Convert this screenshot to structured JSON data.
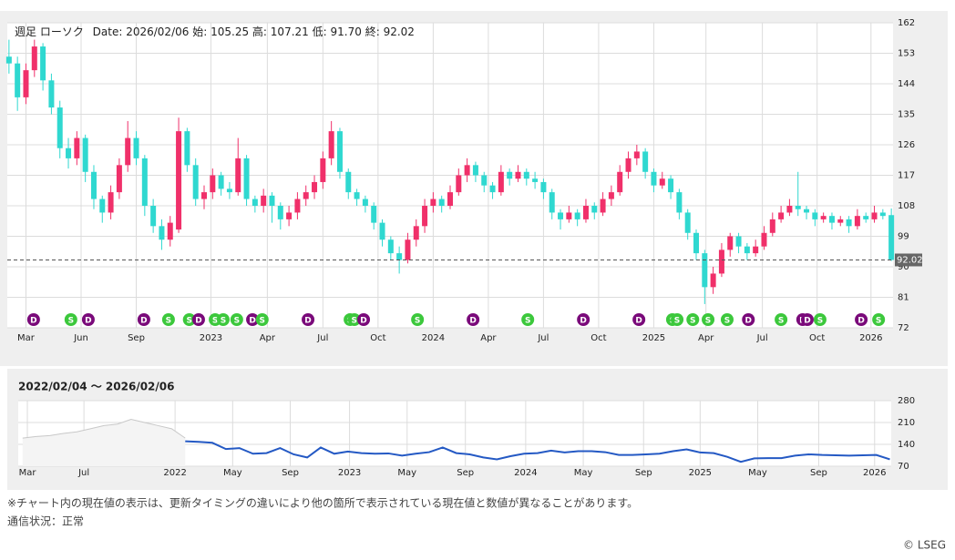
{
  "chart_data": [
    {
      "type": "candlestick",
      "header": {
        "kind": "週足 ローソク",
        "date_label": "Date:",
        "date": "2026/02/06",
        "open_label": "始:",
        "open": "105.25",
        "high_label": "高:",
        "high": "107.21",
        "low_label": "低:",
        "low": "91.70",
        "close_label": "終:",
        "close": "92.02"
      },
      "up_color": "#f0306a",
      "down_color": "#2fd8d0",
      "xlim": [
        -0.4,
        208.4
      ],
      "ylim": [
        72,
        162
      ],
      "yticks": [
        72,
        81,
        90,
        99,
        108,
        117,
        126,
        135,
        144,
        153,
        162
      ],
      "xticks": [
        {
          "value": 4,
          "label": "Mar"
        },
        {
          "value": 17,
          "label": "Jun"
        },
        {
          "value": 30,
          "label": "Sep"
        },
        {
          "value": 47.6,
          "label": "2023"
        },
        {
          "value": 60.9,
          "label": "Apr"
        },
        {
          "value": 74,
          "label": "Jul"
        },
        {
          "value": 87,
          "label": "Oct"
        },
        {
          "value": 100,
          "label": "2024"
        },
        {
          "value": 113,
          "label": "Apr"
        },
        {
          "value": 126,
          "label": "Jul"
        },
        {
          "value": 139,
          "label": "Oct"
        },
        {
          "value": 152,
          "label": "2025"
        },
        {
          "value": 164.3,
          "label": "Apr"
        },
        {
          "value": 177.6,
          "label": "Jul"
        },
        {
          "value": 190.5,
          "label": "Oct"
        },
        {
          "value": 203.2,
          "label": "2026"
        }
      ],
      "grid": true,
      "current_price": 92.02,
      "candles": [
        [
          0,
          152,
          157,
          147,
          150
        ],
        [
          2,
          150,
          152,
          136,
          140
        ],
        [
          4,
          140,
          150,
          138,
          148
        ],
        [
          6,
          148,
          157,
          146,
          155
        ],
        [
          8,
          155,
          156,
          142,
          145
        ],
        [
          10,
          145,
          147,
          135,
          137
        ],
        [
          12,
          137,
          139,
          122,
          125
        ],
        [
          14,
          125,
          128,
          119,
          122
        ],
        [
          16,
          122,
          130,
          120,
          128
        ],
        [
          18,
          128,
          129,
          115,
          118
        ],
        [
          20,
          118,
          120,
          107,
          110
        ],
        [
          22,
          110,
          111,
          103,
          106
        ],
        [
          24,
          106,
          114,
          104,
          112
        ],
        [
          26,
          112,
          122,
          110,
          120
        ],
        [
          28,
          120,
          133,
          118,
          128
        ],
        [
          30,
          128,
          130,
          120,
          122
        ],
        [
          32,
          122,
          123,
          105,
          108
        ],
        [
          34,
          108,
          110,
          100,
          102
        ],
        [
          36,
          102,
          104,
          95,
          98
        ],
        [
          38,
          98,
          105,
          96,
          103
        ],
        [
          40,
          101,
          134,
          100,
          130
        ],
        [
          42,
          130,
          131,
          118,
          120
        ],
        [
          44,
          120,
          122,
          108,
          110
        ],
        [
          46,
          110,
          114,
          107,
          112
        ],
        [
          48,
          112,
          119,
          110,
          117
        ],
        [
          50,
          117,
          118,
          111,
          113
        ],
        [
          52,
          113,
          115,
          110,
          112
        ],
        [
          54,
          112,
          128,
          111,
          122
        ],
        [
          56,
          122,
          123,
          108,
          110
        ],
        [
          58,
          110,
          111,
          106,
          108
        ],
        [
          60,
          108,
          113,
          106,
          111
        ],
        [
          62,
          111,
          112,
          103,
          108
        ],
        [
          64,
          108,
          109,
          101,
          104
        ],
        [
          66,
          104,
          108,
          102,
          106
        ],
        [
          68,
          106,
          112,
          104,
          110
        ],
        [
          70,
          110,
          114,
          108,
          112
        ],
        [
          72,
          112,
          117,
          110,
          115
        ],
        [
          74,
          115,
          124,
          113,
          122
        ],
        [
          76,
          122,
          133,
          120,
          130
        ],
        [
          78,
          130,
          131,
          116,
          118
        ],
        [
          80,
          118,
          119,
          110,
          112
        ],
        [
          82,
          112,
          113,
          108,
          110
        ],
        [
          84,
          110,
          111,
          106,
          108
        ],
        [
          86,
          108,
          109,
          101,
          103
        ],
        [
          88,
          103,
          104,
          96,
          98
        ],
        [
          90,
          98,
          99,
          92,
          94
        ],
        [
          92,
          94,
          96,
          88,
          92
        ],
        [
          94,
          92,
          100,
          91,
          98
        ],
        [
          96,
          98,
          104,
          96,
          102
        ],
        [
          98,
          102,
          110,
          100,
          108
        ],
        [
          100,
          108,
          112,
          106,
          110
        ],
        [
          102,
          110,
          111,
          106,
          108
        ],
        [
          104,
          108,
          114,
          107,
          112
        ],
        [
          106,
          112,
          119,
          111,
          117
        ],
        [
          108,
          117,
          122,
          115,
          120
        ],
        [
          110,
          120,
          121,
          115,
          117
        ],
        [
          112,
          117,
          118,
          112,
          114
        ],
        [
          114,
          114,
          115,
          110,
          112
        ],
        [
          116,
          112,
          120,
          111,
          118
        ],
        [
          118,
          118,
          119,
          114,
          116
        ],
        [
          120,
          116,
          120,
          115,
          118
        ],
        [
          122,
          118,
          119,
          114,
          116
        ],
        [
          124,
          116,
          118,
          113,
          115
        ],
        [
          126,
          115,
          116,
          110,
          112
        ],
        [
          128,
          112,
          113,
          104,
          106
        ],
        [
          130,
          106,
          107,
          101,
          104
        ],
        [
          132,
          104,
          108,
          103,
          106
        ],
        [
          134,
          106,
          107,
          102,
          104
        ],
        [
          136,
          104,
          110,
          103,
          108
        ],
        [
          138,
          108,
          109,
          104,
          106
        ],
        [
          140,
          106,
          112,
          105,
          110
        ],
        [
          142,
          110,
          114,
          108,
          112
        ],
        [
          144,
          112,
          120,
          111,
          118
        ],
        [
          146,
          118,
          124,
          116,
          122
        ],
        [
          148,
          122,
          126,
          120,
          124
        ],
        [
          150,
          124,
          125,
          116,
          118
        ],
        [
          152,
          118,
          119,
          112,
          114
        ],
        [
          154,
          114,
          118,
          113,
          116
        ],
        [
          156,
          116,
          117,
          110,
          112
        ],
        [
          158,
          112,
          113,
          104,
          106
        ],
        [
          160,
          106,
          107,
          98,
          100
        ],
        [
          162,
          100,
          101,
          92,
          94
        ],
        [
          164,
          94,
          95,
          79,
          84
        ],
        [
          166,
          84,
          90,
          82,
          88
        ],
        [
          168,
          88,
          97,
          87,
          95
        ],
        [
          170,
          95,
          100,
          93,
          99
        ],
        [
          172,
          99,
          100,
          94,
          96
        ],
        [
          174,
          96,
          97,
          92,
          94
        ],
        [
          176,
          94,
          98,
          93,
          96
        ],
        [
          178,
          96,
          102,
          95,
          100
        ],
        [
          180,
          100,
          106,
          99,
          104
        ],
        [
          182,
          104,
          108,
          103,
          106
        ],
        [
          184,
          106,
          110,
          105,
          108
        ],
        [
          186,
          108,
          118,
          105,
          107
        ],
        [
          188,
          107,
          108,
          104,
          106
        ],
        [
          190,
          106,
          107,
          102,
          104
        ],
        [
          192,
          104,
          106,
          103,
          105
        ],
        [
          194,
          105,
          106,
          101,
          103
        ],
        [
          196,
          103,
          105,
          102,
          104
        ],
        [
          198,
          104,
          105,
          100,
          102
        ],
        [
          200,
          102,
          107,
          101,
          105
        ],
        [
          202,
          105,
          106,
          103,
          104
        ],
        [
          204,
          104,
          108,
          103,
          106
        ],
        [
          206,
          106,
          107,
          104,
          105
        ],
        [
          208,
          105.25,
          107.21,
          91.7,
          92.02
        ]
      ],
      "event_colors": {
        "D": "#7a0a7a",
        "S": "#3cc83c"
      },
      "events": [
        {
          "x": 5.8,
          "label": "D"
        },
        {
          "x": 14.6,
          "label": "S"
        },
        {
          "x": 18.7,
          "label": "D"
        },
        {
          "x": 31.8,
          "label": "D"
        },
        {
          "x": 37.6,
          "label": "S"
        },
        {
          "x": 42.5,
          "label": "S"
        },
        {
          "x": 44.7,
          "label": "D"
        },
        {
          "x": 48.6,
          "label": "S"
        },
        {
          "x": 50.5,
          "label": "S"
        },
        {
          "x": 53.7,
          "label": "S"
        },
        {
          "x": 57.4,
          "label": "D"
        },
        {
          "x": 59.7,
          "label": "S"
        },
        {
          "x": 70.5,
          "label": "D"
        },
        {
          "x": 80.4,
          "label": "S"
        },
        {
          "x": 81.4,
          "label": "S"
        },
        {
          "x": 83.6,
          "label": "D"
        },
        {
          "x": 96.3,
          "label": "S"
        },
        {
          "x": 109.4,
          "label": "D"
        },
        {
          "x": 122.3,
          "label": "S"
        },
        {
          "x": 135.4,
          "label": "D"
        },
        {
          "x": 148.5,
          "label": "D"
        },
        {
          "x": 156.4,
          "label": "S"
        },
        {
          "x": 157.5,
          "label": "S"
        },
        {
          "x": 161.2,
          "label": "S"
        },
        {
          "x": 164.8,
          "label": "S"
        },
        {
          "x": 169.3,
          "label": "S"
        },
        {
          "x": 174.3,
          "label": "D"
        },
        {
          "x": 182,
          "label": "S"
        },
        {
          "x": 187.1,
          "label": "D"
        },
        {
          "x": 188.2,
          "label": "D"
        },
        {
          "x": 191.2,
          "label": "S"
        },
        {
          "x": 200.9,
          "label": "D"
        },
        {
          "x": 205,
          "label": "S"
        }
      ]
    },
    {
      "type": "line",
      "title": "2022/02/04 〜 2026/02/06",
      "xlim": [
        -49.3,
        208.4
      ],
      "ylim": [
        70,
        280
      ],
      "yticks": [
        70,
        140,
        210,
        280
      ],
      "xticks": [
        {
          "value": -46.6,
          "label": "Mar"
        },
        {
          "value": -29.9,
          "label": "Jul"
        },
        {
          "value": -3,
          "label": "2022"
        },
        {
          "value": 14,
          "label": "May"
        },
        {
          "value": 31,
          "label": "Sep"
        },
        {
          "value": 48.5,
          "label": "2023"
        },
        {
          "value": 65.5,
          "label": "May"
        },
        {
          "value": 82.7,
          "label": "Sep"
        },
        {
          "value": 100.5,
          "label": "2024"
        },
        {
          "value": 117.5,
          "label": "May"
        },
        {
          "value": 135.3,
          "label": "Sep"
        },
        {
          "value": 152,
          "label": "2025"
        },
        {
          "value": 169,
          "label": "May"
        },
        {
          "value": 187,
          "label": "Sep"
        },
        {
          "value": 203.5,
          "label": "2026"
        }
      ],
      "x": [
        -48,
        -44,
        -40,
        -36,
        -32,
        -28,
        -24,
        -20,
        -16,
        -12,
        -8,
        -4,
        0,
        4,
        8,
        12,
        16,
        20,
        24,
        28,
        32,
        36,
        40,
        44,
        48,
        52,
        56,
        60,
        64,
        68,
        72,
        76,
        80,
        84,
        88,
        92,
        96,
        100,
        104,
        108,
        112,
        116,
        120,
        124,
        128,
        132,
        136,
        140,
        144,
        148,
        152,
        156,
        160,
        164,
        168,
        172,
        176,
        180,
        184,
        188,
        192,
        196,
        200,
        204,
        208
      ],
      "history": {
        "color": "#c8c8c8",
        "values": [
          160,
          165,
          168,
          175,
          180,
          190,
          200,
          205,
          220,
          210,
          200,
          190,
          160,
          null,
          null,
          null,
          null,
          null,
          null,
          null,
          null,
          null,
          null,
          null,
          null,
          null,
          null,
          null,
          null,
          null,
          null,
          null,
          null,
          null,
          null,
          null,
          null,
          null,
          null,
          null,
          null,
          null,
          null,
          null,
          null,
          null,
          null,
          null,
          null,
          null,
          null,
          null,
          null,
          null,
          null,
          null,
          null,
          null,
          null,
          null,
          null,
          null,
          null,
          null,
          null
        ]
      },
      "line": {
        "color": "#2459c4",
        "values": [
          null,
          null,
          null,
          null,
          null,
          null,
          null,
          null,
          null,
          null,
          null,
          null,
          150,
          148,
          145,
          125,
          128,
          110,
          112,
          128,
          108,
          98,
          130,
          110,
          117,
          112,
          110,
          111,
          104,
          110,
          115,
          130,
          112,
          108,
          98,
          92,
          102,
          110,
          112,
          120,
          114,
          118,
          118,
          115,
          106,
          106,
          108,
          110,
          118,
          124,
          114,
          112,
          100,
          84,
          95,
          96,
          96,
          104,
          108,
          106,
          105,
          104,
          105,
          106,
          92.02
        ]
      }
    }
  ],
  "footer": {
    "note": "※チャート内の現在値の表示は、更新タイミングの違いにより他の箇所で表示されている現在値と数値が異なることがあります。",
    "status": "通信状況：正常",
    "credit": "© LSEG"
  }
}
